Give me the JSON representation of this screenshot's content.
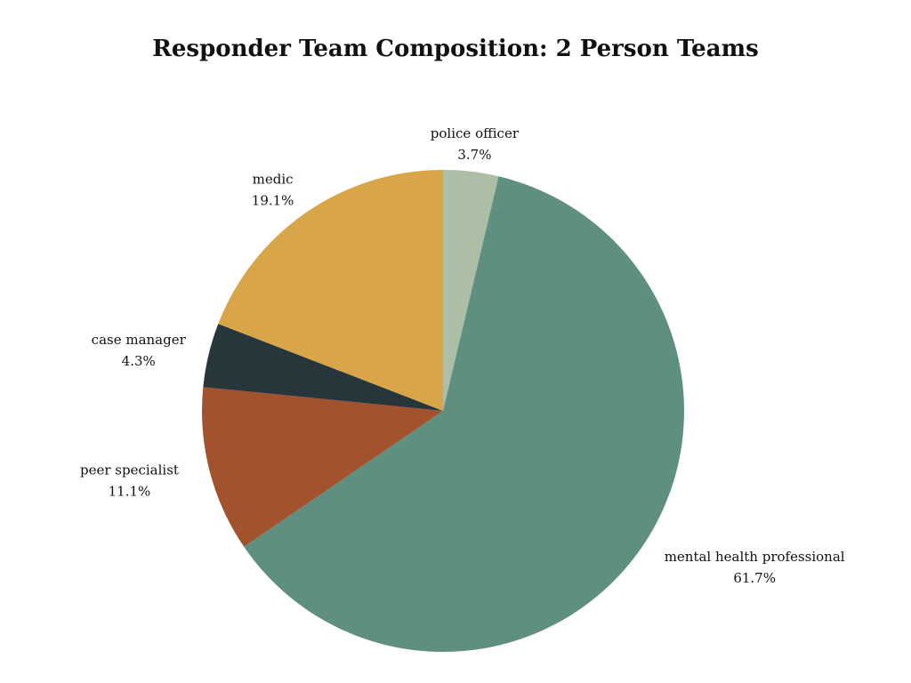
{
  "chart_data": {
    "type": "pie",
    "title": "Responder Team Composition: 2 Person Teams",
    "slices": [
      {
        "label": "police officer",
        "value": 3.7,
        "pct_label": "3.7%",
        "color": "#adbda6"
      },
      {
        "label": "mental health professional",
        "value": 61.7,
        "pct_label": "61.7%",
        "color": "#5f8f7f"
      },
      {
        "label": "peer specialist",
        "value": 11.1,
        "pct_label": "11.1%",
        "color": "#a2532d"
      },
      {
        "label": "case manager",
        "value": 4.3,
        "pct_label": "4.3%",
        "color": "#27363b"
      },
      {
        "label": "medic",
        "value": 19.1,
        "pct_label": "19.1%",
        "color": "#d8a548"
      }
    ],
    "start": "top",
    "direction": "clockwise"
  }
}
